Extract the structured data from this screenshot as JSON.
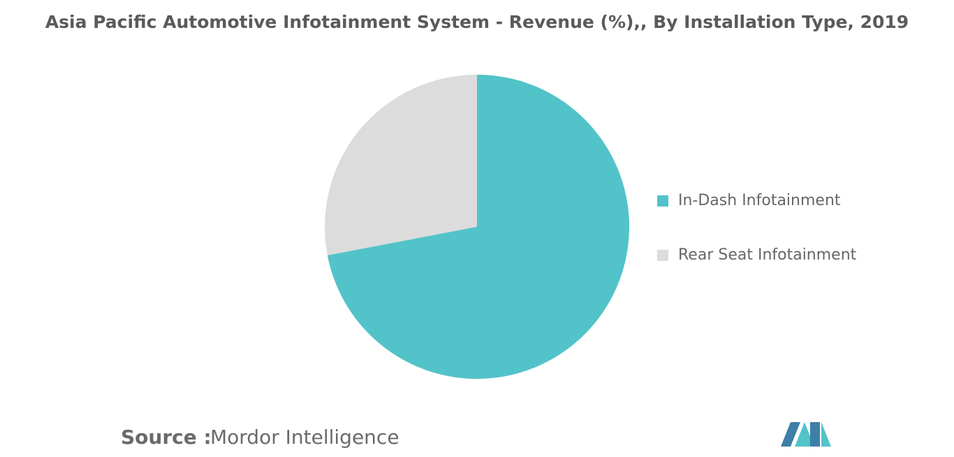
{
  "chart_data": {
    "type": "pie",
    "title": "Asia Pacific Automotive Infotainment System - Revenue (%),, By Installation Type, 2019",
    "categories": [
      "In-Dash Infotainment",
      "Rear Seat Infotainment"
    ],
    "values": [
      72,
      28
    ],
    "colors": [
      "#52c3c9",
      "#dcdcdc"
    ],
    "legend": "right"
  },
  "source": {
    "label": "Source :",
    "value": "Mordor Intelligence"
  }
}
